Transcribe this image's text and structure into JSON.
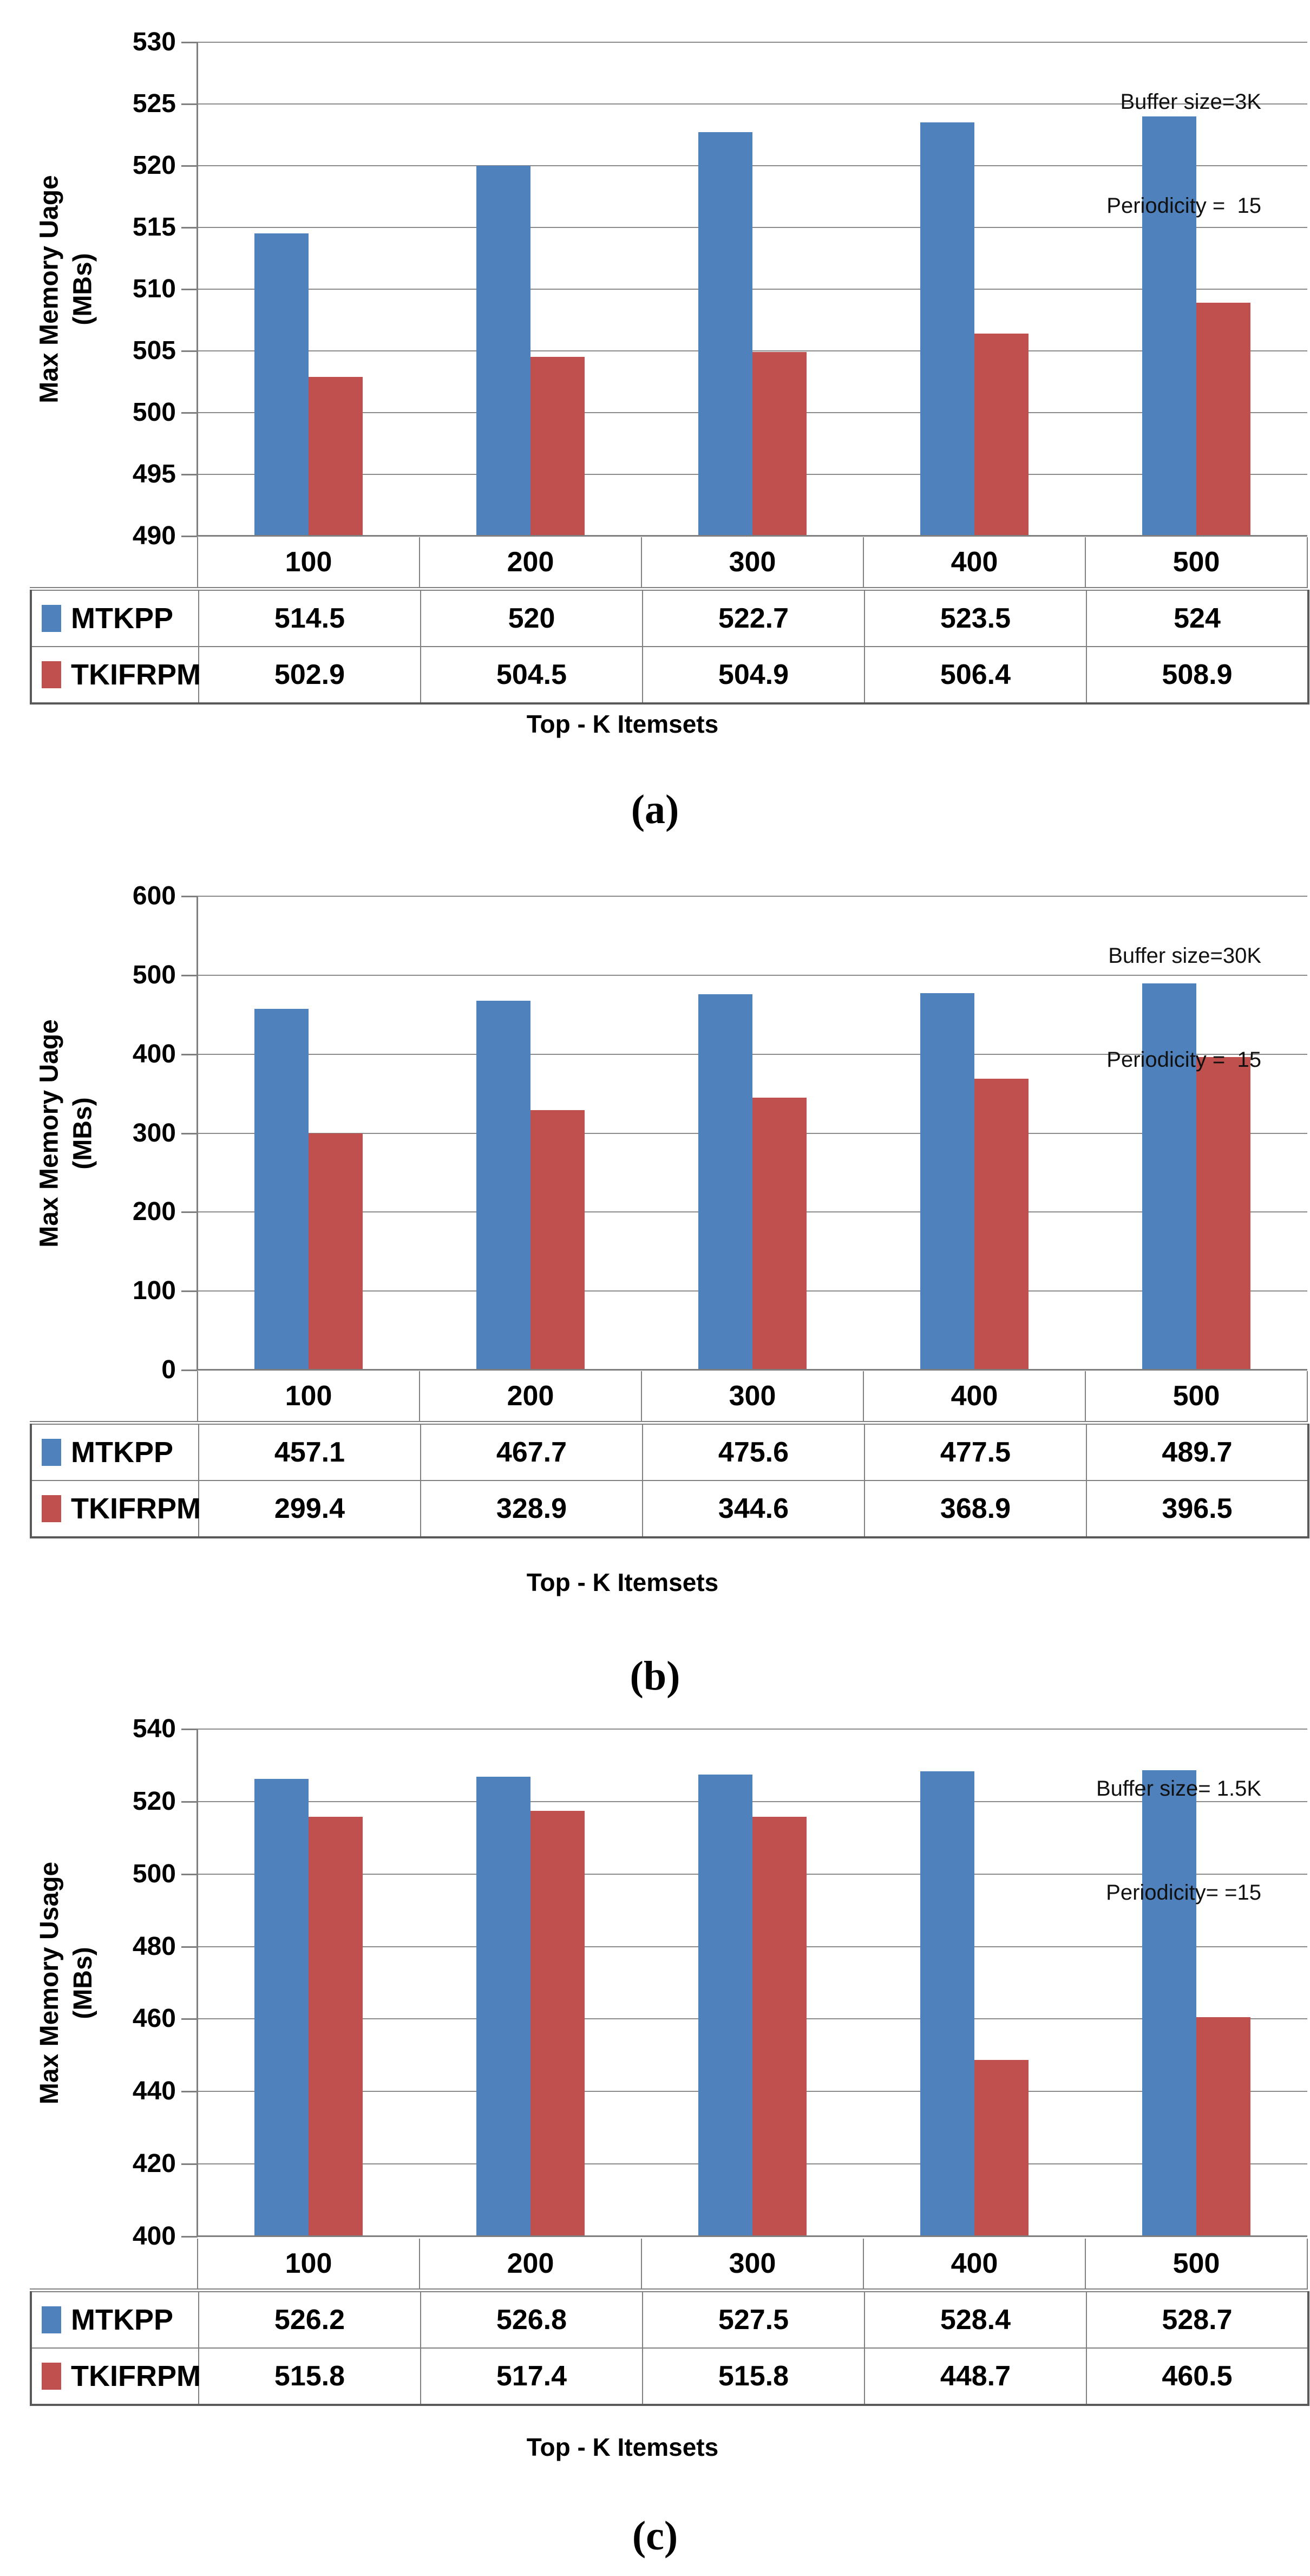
{
  "figure": {
    "description": "Three stacked grouped bar charts comparing max memory usage of MTKPP and TKIFRPM over Top-K itemsets, each with an attached data table legend",
    "series_colors": {
      "MTKPP": "#4F81BD",
      "TKIFRPM": "#C0504D"
    },
    "grid_color": "#8A8A8A",
    "axis_color": "#7F7F7F"
  },
  "chart_data": [
    {
      "type": "bar",
      "caption": "(a)",
      "annotations": [
        "Buffer size=3K",
        "Periodicity =  15"
      ],
      "ylabel_lines": [
        "Max Memory Uage",
        "(MBs)"
      ],
      "xlabel": "Top - K Itemsets",
      "categories": [
        "100",
        "200",
        "300",
        "400",
        "500"
      ],
      "series": [
        {
          "name": "MTKPP",
          "color": "#4F81BD",
          "values": [
            514.5,
            520,
            522.7,
            523.5,
            524
          ]
        },
        {
          "name": "TKIFRPM",
          "color": "#C0504D",
          "values": [
            502.9,
            504.5,
            504.9,
            506.4,
            508.9
          ]
        }
      ],
      "ylim": [
        490,
        530
      ],
      "ytick_step": 5,
      "grid": true,
      "legend_position": "data-table-left"
    },
    {
      "type": "bar",
      "caption": "(b)",
      "annotations": [
        "Buffer size=30K",
        "Periodicity =  15"
      ],
      "ylabel_lines": [
        "Max Memory Uage",
        "(MBs)"
      ],
      "xlabel": "Top - K Itemsets",
      "categories": [
        "100",
        "200",
        "300",
        "400",
        "500"
      ],
      "series": [
        {
          "name": "MTKPP",
          "color": "#4F81BD",
          "values": [
            457.1,
            467.7,
            475.6,
            477.5,
            489.7
          ]
        },
        {
          "name": "TKIFRPM",
          "color": "#C0504D",
          "values": [
            299.4,
            328.9,
            344.6,
            368.9,
            396.5
          ]
        }
      ],
      "ylim": [
        0,
        600
      ],
      "ytick_step": 100,
      "grid": true,
      "legend_position": "data-table-left"
    },
    {
      "type": "bar",
      "caption": "(c)",
      "annotations": [
        "Buffer size= 1.5K",
        "Periodicity= =15"
      ],
      "ylabel_lines": [
        "Max Memory Usage",
        "(MBs)"
      ],
      "xlabel": "Top - K Itemsets",
      "categories": [
        "100",
        "200",
        "300",
        "400",
        "500"
      ],
      "series": [
        {
          "name": "MTKPP",
          "color": "#4F81BD",
          "values": [
            526.2,
            526.8,
            527.5,
            528.4,
            528.7
          ]
        },
        {
          "name": "TKIFRPM",
          "color": "#C0504D",
          "values": [
            515.8,
            517.4,
            515.8,
            448.7,
            460.5
          ]
        }
      ],
      "ylim": [
        400,
        540
      ],
      "ytick_step": 20,
      "grid": true,
      "legend_position": "data-table-left"
    }
  ]
}
